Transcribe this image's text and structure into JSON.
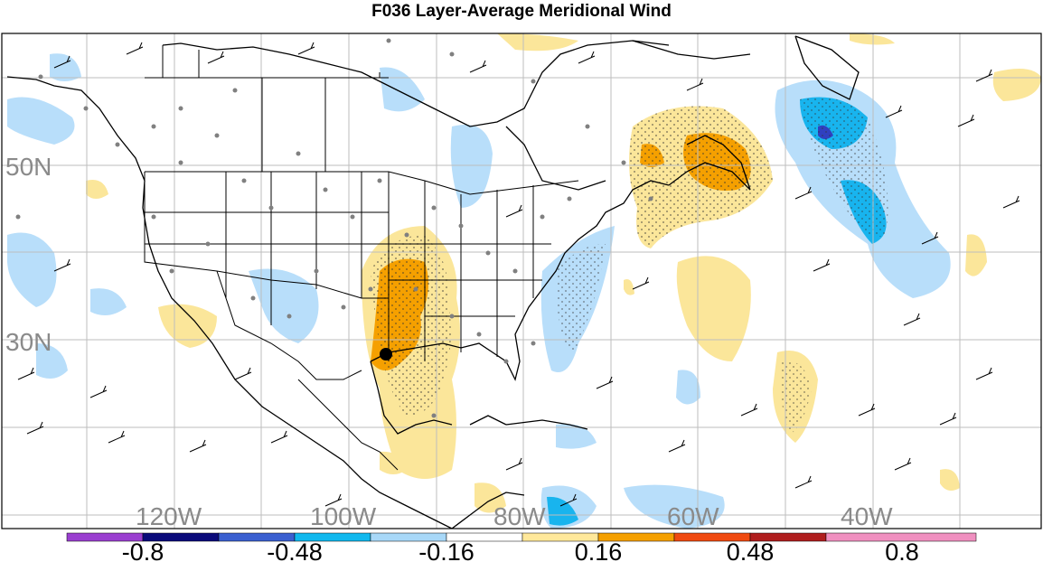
{
  "title": "F036 Layer-Average Meridional Wind",
  "latitude_labels": [
    "50N",
    "30N"
  ],
  "longitude_labels": [
    "120W",
    "100W",
    "80W",
    "60W",
    "40W"
  ],
  "colorbar": {
    "tick_labels": [
      "-0.8",
      "-0.48",
      "-0.16",
      "0.16",
      "0.48",
      "0.8"
    ],
    "colors": [
      "#9a3fd0",
      "#0a0a7a",
      "#3a5fd0",
      "#10b8ee",
      "#a8d8f8",
      "#ffffff",
      "#ffe89a",
      "#f5a000",
      "#f04a10",
      "#b01e1e",
      "#f090c0"
    ]
  },
  "colors": {
    "positive_light": "#fbe69a",
    "positive_strong": "#f5a000",
    "negative_light": "#b8defa",
    "negative_strong": "#18b4ee",
    "negative_extreme": "#3040c0",
    "grid": "#bdbdbd",
    "coastline": "#000000",
    "station_dot": "#808080"
  }
}
